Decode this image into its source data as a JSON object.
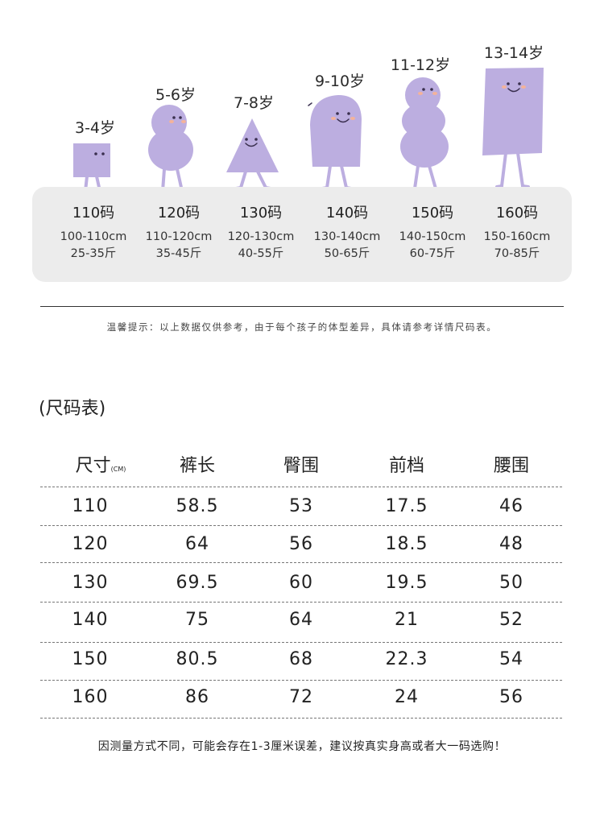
{
  "chart_data": {
    "type": "table",
    "title": "(尺码表)",
    "columns": [
      "尺寸",
      "裤长",
      "臀围",
      "前档",
      "腰围"
    ],
    "unit_label": "(CM)",
    "rows": [
      [
        "110",
        "58.5",
        "53",
        "17.5",
        "46"
      ],
      [
        "120",
        "64",
        "56",
        "18.5",
        "48"
      ],
      [
        "130",
        "69.5",
        "60",
        "19.5",
        "50"
      ],
      [
        "140",
        "75",
        "64",
        "21",
        "52"
      ],
      [
        "150",
        "80.5",
        "68",
        "22.3",
        "54"
      ],
      [
        "160",
        "86",
        "72",
        "24",
        "56"
      ]
    ]
  },
  "size_guide": [
    {
      "age": "3-4岁",
      "size": "110码",
      "height": "100-110cm",
      "weight": "25-35斤"
    },
    {
      "age": "5-6岁",
      "size": "120码",
      "height": "110-120cm",
      "weight": "35-45斤"
    },
    {
      "age": "7-8岁",
      "size": "130码",
      "height": "120-130cm",
      "weight": "40-55斤"
    },
    {
      "age": "9-10岁",
      "size": "140码",
      "height": "130-140cm",
      "weight": "50-65斤"
    },
    {
      "age": "11-12岁",
      "size": "150码",
      "height": "140-150cm",
      "weight": "60-75斤"
    },
    {
      "age": "13-14岁",
      "size": "160码",
      "height": "150-160cm",
      "weight": "70-85斤"
    }
  ],
  "tip": "温馨提示：以上数据仅供参考，由于每个孩子的体型差异，具体请参考详情尺码表。",
  "note": "因测量方式不同，可能会存在1-3厘米误差，建议按真实身高或者大一码选购！",
  "colors": {
    "character": "#bcaee0",
    "panel": "#ececec",
    "cheek": "#f4b39a"
  }
}
